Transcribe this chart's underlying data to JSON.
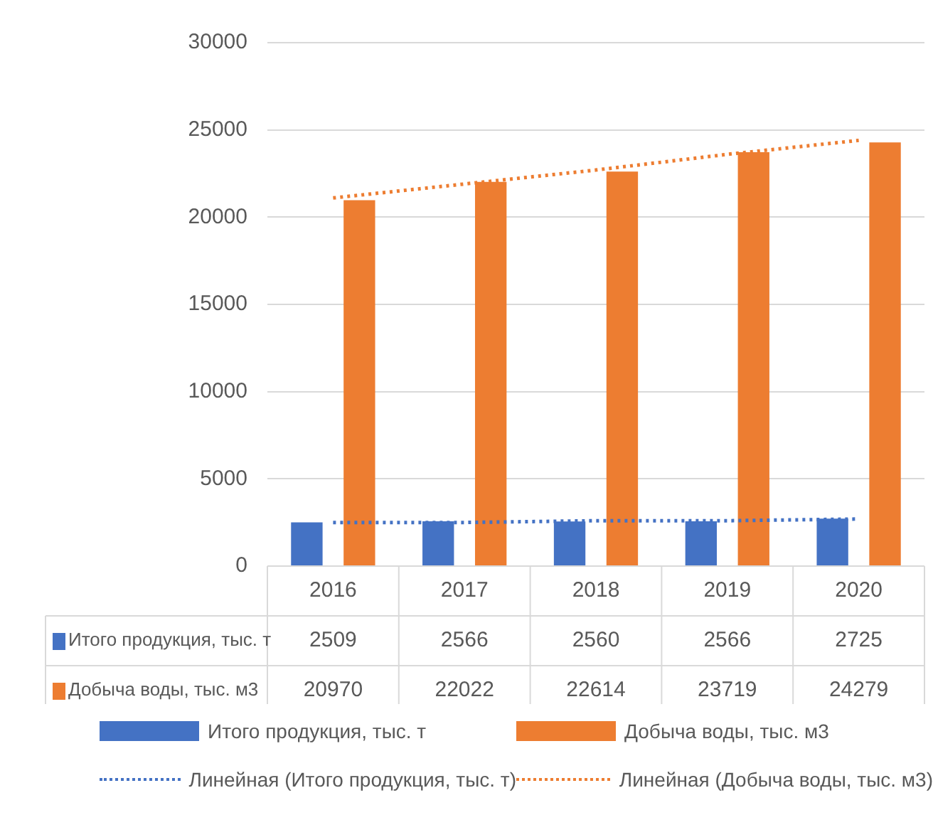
{
  "chart_data": {
    "type": "bar",
    "categories": [
      "2016",
      "2017",
      "2018",
      "2019",
      "2020"
    ],
    "ylim": [
      0,
      30000
    ],
    "yticks": [
      0,
      5000,
      10000,
      15000,
      20000,
      25000,
      30000
    ],
    "grid": "y",
    "legend": "bottom",
    "series": [
      {
        "name": "Итого продукция, тыс. т",
        "color": "#4472c4",
        "values": [
          2509,
          2566,
          2560,
          2566,
          2725
        ],
        "value_labels": [
          "2509",
          "2566",
          "2560",
          "2566",
          "2725"
        ]
      },
      {
        "name": "Добыча воды, тыс. м3",
        "color": "#ed7d31",
        "values": [
          20970,
          22022,
          22614,
          23719,
          24279
        ],
        "value_labels": [
          "20970",
          "22022",
          "22614",
          "23719",
          "24279"
        ]
      },
      {
        "name": "Линейная (Итого продукция, тыс. т)",
        "type": "line",
        "line_style": "dotted",
        "marker": "none",
        "color": "#4472c4",
        "values": [
          2500,
          2500,
          2600,
          2600,
          2700
        ]
      },
      {
        "name": "Линейная (Добыча воды, тыс. м3)",
        "type": "line",
        "line_style": "dotted",
        "marker": "none",
        "color": "#ed7d31",
        "values": [
          21100,
          21900,
          22700,
          23600,
          24400
        ]
      }
    ]
  }
}
